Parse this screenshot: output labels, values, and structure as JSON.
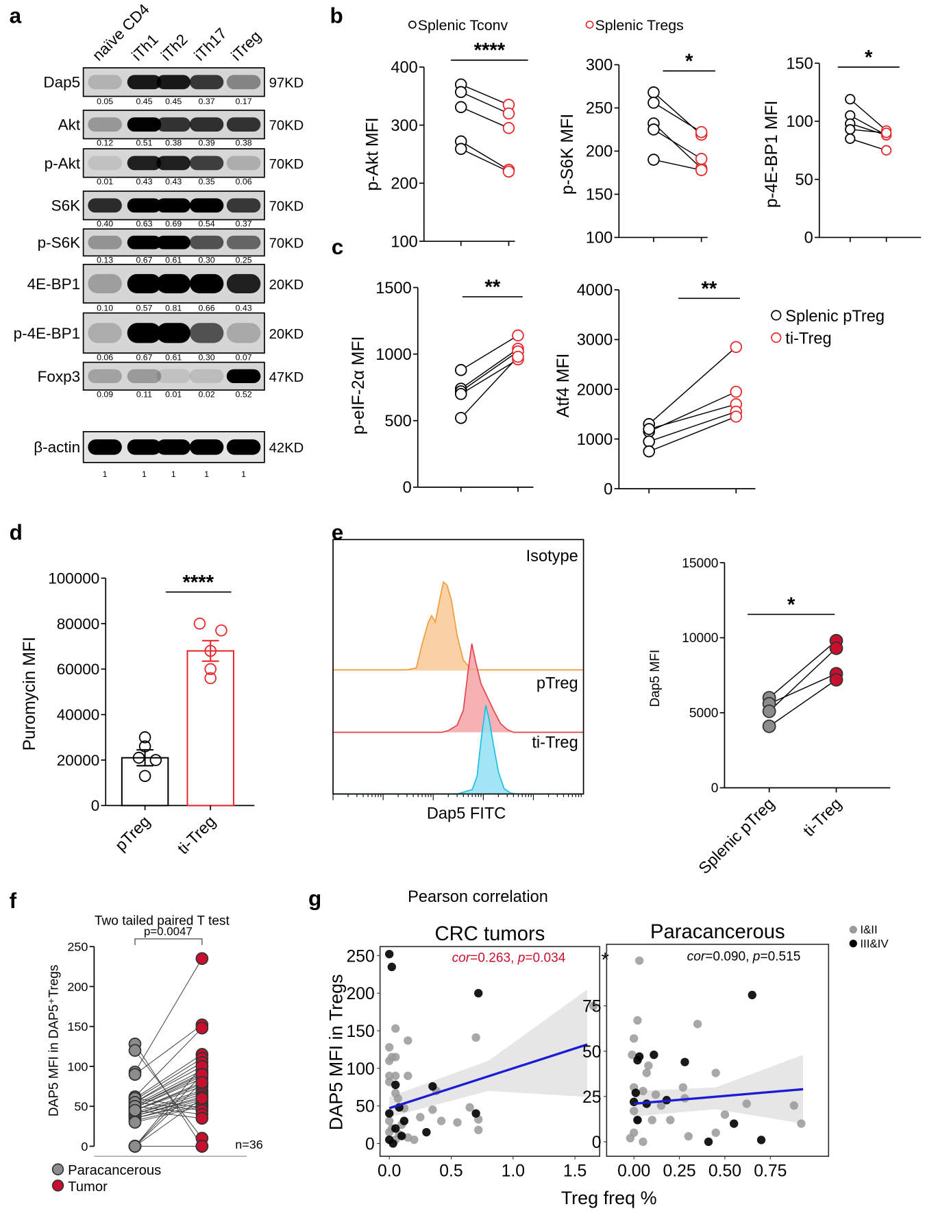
{
  "panel_labels": {
    "a": "a",
    "b": "b",
    "c": "c",
    "d": "d",
    "e": "e",
    "f": "f",
    "g": "g"
  },
  "legends": {
    "b": [
      {
        "label": "Splenic Tconv",
        "color": "#000000"
      },
      {
        "label": "Splenic Tregs",
        "color": "#e8262a"
      }
    ],
    "c": [
      {
        "label": "Splenic pTreg",
        "color": "#000000"
      },
      {
        "label": "ti-Treg",
        "color": "#e8262a"
      }
    ],
    "f": [
      {
        "label": "Paracancerous",
        "color": "#8c8c8c"
      },
      {
        "label": "Tumor",
        "color": "#c8102e"
      }
    ],
    "g": [
      {
        "label": "I&II",
        "color": "#9a9a9a"
      },
      {
        "label": "III&IV",
        "color": "#000000"
      }
    ]
  },
  "panel_g": {
    "title": "Pearson correlation",
    "xlabel": "Treg freq %",
    "ylabel": "DAP5 MFI in Tregs"
  },
  "chart_data": [
    {
      "panel": "a",
      "type": "table",
      "lanes": [
        "naïve CD4",
        "iTh1",
        "iTh2",
        "iTh17",
        "iTreg"
      ],
      "rows": [
        {
          "protein": "Dap5",
          "size": "97KD",
          "values": [
            "0.05",
            "0.45",
            "0.45",
            "0.37",
            "0.17"
          ]
        },
        {
          "protein": "Akt",
          "size": "70KD",
          "values": [
            "0.12",
            "0.51",
            "0.38",
            "0.39",
            "0.38"
          ]
        },
        {
          "protein": "p-Akt",
          "size": "70KD",
          "values": [
            "0.01",
            "0.43",
            "0.43",
            "0.35",
            "0.06"
          ]
        },
        {
          "protein": "S6K",
          "size": "70KD",
          "values": [
            "0.40",
            "0.63",
            "0.69",
            "0.54",
            "0.37"
          ]
        },
        {
          "protein": "p-S6K",
          "size": "70KD",
          "values": [
            "0.13",
            "0.67",
            "0.61",
            "0.30",
            "0.25"
          ]
        },
        {
          "protein": "4E-BP1",
          "size": "20KD",
          "values": [
            "0.10",
            "0.57",
            "0.81",
            "0.66",
            "0.43"
          ]
        },
        {
          "protein": "p-4E-BP1",
          "size": "20KD",
          "values": [
            "0.06",
            "0.67",
            "0.61",
            "0.30",
            "0.07"
          ]
        },
        {
          "protein": "Foxp3",
          "size": "47KD",
          "values": [
            "0.09",
            "0.11",
            "0.01",
            "0.02",
            "0.52"
          ]
        },
        {
          "protein": "β-actin",
          "size": "42KD",
          "values": [
            "1",
            "1",
            "1",
            "1",
            "1"
          ]
        }
      ]
    },
    {
      "panel": "b",
      "type": "scatter",
      "paired": true,
      "ylabel": "p-Akt MFI",
      "ylim": [
        100,
        400
      ],
      "yticks": [
        100,
        200,
        300,
        400
      ],
      "significance": "****",
      "series": [
        {
          "values": [
            370,
            357,
            331,
            272,
            259
          ]
        },
        {
          "values": [
            335,
            320,
            295,
            223,
            220
          ]
        }
      ]
    },
    {
      "panel": "b",
      "type": "scatter",
      "paired": true,
      "ylabel": "p-S6K MFI",
      "ylim": [
        100,
        300
      ],
      "yticks": [
        100,
        150,
        200,
        250,
        300
      ],
      "significance": "*",
      "series": [
        {
          "values": [
            268,
            256,
            232,
            225,
            190
          ]
        },
        {
          "values": [
            219,
            222,
            180,
            191,
            178
          ]
        }
      ]
    },
    {
      "panel": "b",
      "type": "scatter",
      "paired": true,
      "ylabel": "p-4E-BP1 MFI",
      "ylim": [
        0,
        150
      ],
      "yticks": [
        0,
        50,
        100,
        150
      ],
      "significance": "*",
      "series": [
        {
          "values": [
            119,
            105,
            98,
            93,
            85
          ]
        },
        {
          "values": [
            92,
            88,
            88,
            90,
            75
          ]
        }
      ]
    },
    {
      "panel": "c",
      "type": "scatter",
      "paired": true,
      "ylabel": "p-eIF-2α MFI",
      "ylim": [
        0,
        1500
      ],
      "yticks": [
        0,
        500,
        1000,
        1500
      ],
      "significance": "**",
      "series": [
        {
          "values": [
            880,
            740,
            720,
            700,
            520
          ]
        },
        {
          "values": [
            1140,
            1040,
            1020,
            960,
            980
          ]
        }
      ]
    },
    {
      "panel": "c",
      "type": "scatter",
      "paired": true,
      "ylabel": "Atf4 MFI",
      "ylim": [
        0,
        4000
      ],
      "yticks": [
        0,
        1000,
        2000,
        3000,
        4000
      ],
      "significance": "**",
      "series": [
        {
          "values": [
            1300,
            1150,
            1200,
            950,
            750
          ]
        },
        {
          "values": [
            2850,
            1950,
            1700,
            1550,
            1450
          ]
        }
      ]
    },
    {
      "panel": "d",
      "type": "bar",
      "ylabel": "Puromycin MFI",
      "categories": [
        "pTreg",
        "ti-Treg"
      ],
      "ylim": [
        0,
        100000
      ],
      "yticks": [
        0,
        20000,
        40000,
        60000,
        80000,
        100000
      ],
      "significance": "****",
      "means": [
        21000,
        68000
      ],
      "sem": [
        3500,
        4500
      ],
      "points": [
        [
          30000,
          26000,
          21000,
          20000,
          13000
        ],
        [
          80000,
          77000,
          68000,
          60000,
          56000
        ]
      ],
      "colors": [
        "#000000",
        "#e8262a"
      ]
    },
    {
      "panel": "e",
      "type": "area",
      "xlabel": "Dap5 FITC",
      "xscale": "log",
      "xlim": [
        1,
        100000
      ],
      "ylim": [
        0,
        100
      ],
      "series": [
        {
          "name": "Isotype",
          "color": "#f39a3a",
          "fill": "#f8c995",
          "points": [
            [
              1,
              1
            ],
            [
              30,
              1
            ],
            [
              46,
              3
            ],
            [
              60,
              30
            ],
            [
              80,
              55
            ],
            [
              93,
              62
            ],
            [
              110,
              55
            ],
            [
              140,
              85
            ],
            [
              160,
              100
            ],
            [
              190,
              96
            ],
            [
              230,
              80
            ],
            [
              300,
              40
            ],
            [
              400,
              12
            ],
            [
              560,
              2
            ],
            [
              800,
              1
            ],
            [
              100000,
              1
            ]
          ]
        },
        {
          "name": "pTreg",
          "color": "#e8424a",
          "fill": "#f5a3a6",
          "points": [
            [
              1,
              0
            ],
            [
              150,
              0
            ],
            [
              200,
              2
            ],
            [
              300,
              8
            ],
            [
              400,
              25
            ],
            [
              500,
              70
            ],
            [
              590,
              100
            ],
            [
              700,
              80
            ],
            [
              900,
              55
            ],
            [
              1200,
              40
            ],
            [
              1600,
              25
            ],
            [
              2200,
              10
            ],
            [
              3000,
              3
            ],
            [
              4000,
              0
            ],
            [
              100000,
              0
            ]
          ]
        },
        {
          "name": "ti-Treg",
          "color": "#19bfe3",
          "fill": "#92e2f4",
          "points": [
            [
              1,
              0
            ],
            [
              300,
              0
            ],
            [
              400,
              2
            ],
            [
              600,
              5
            ],
            [
              750,
              20
            ],
            [
              900,
              60
            ],
            [
              1120,
              100
            ],
            [
              1300,
              85
            ],
            [
              1600,
              55
            ],
            [
              2000,
              25
            ],
            [
              2600,
              6
            ],
            [
              3500,
              1
            ],
            [
              4500,
              0
            ],
            [
              100000,
              0
            ]
          ]
        }
      ]
    },
    {
      "panel": "e",
      "type": "scatter",
      "paired": true,
      "ylabel": "Dap5 MFI",
      "categories": [
        "Splenic pTreg",
        "ti-Treg"
      ],
      "ylim": [
        0,
        15000
      ],
      "yticks": [
        0,
        5000,
        10000,
        15000
      ],
      "significance": "*",
      "series": [
        {
          "values": [
            6000,
            5600,
            5100,
            4100
          ],
          "color": "#8c8c8c"
        },
        {
          "values": [
            9800,
            7600,
            9300,
            7200
          ],
          "color": "#c8102e"
        }
      ]
    },
    {
      "panel": "f",
      "type": "scatter",
      "paired": true,
      "title": "Two tailed paired T test",
      "ylabel": "DAP5 MFI in DAP5⁺Tregs",
      "ylim": [
        0,
        250
      ],
      "yticks": [
        0,
        50,
        100,
        150,
        200,
        250
      ],
      "pvalue": "p=0.0047",
      "n": "n=36",
      "series": [
        {
          "values": [
            128,
            120,
            93,
            90,
            62,
            60,
            58,
            55,
            55,
            52,
            50,
            50,
            48,
            48,
            45,
            45,
            45,
            42,
            40,
            40,
            38,
            38,
            35,
            35,
            32,
            30,
            60,
            55,
            50,
            45,
            0,
            0,
            0,
            0,
            0,
            0
          ]
        },
        {
          "values": [
            0,
            10,
            235,
            152,
            148,
            115,
            110,
            105,
            100,
            95,
            92,
            90,
            88,
            85,
            80,
            78,
            75,
            70,
            68,
            65,
            62,
            60,
            58,
            55,
            52,
            50,
            48,
            45,
            40,
            35,
            100,
            90,
            80,
            60,
            0,
            0
          ]
        }
      ]
    },
    {
      "panel": "g",
      "type": "scatter",
      "title": "CRC tumors",
      "annotation": "cor=0.263, p=0.034",
      "annotation_mark": "*",
      "annotation_color": "#c8102e",
      "xlim": [
        -0.075,
        1.7
      ],
      "ylim": [
        -17,
        262
      ],
      "xticks": [
        0,
        0.5,
        1.0,
        1.5
      ],
      "xticklabels": [
        "0.0",
        "0.5",
        "1.0",
        "1.5"
      ],
      "yticks": [
        0,
        50,
        100,
        150,
        200,
        250
      ],
      "regression": {
        "intercept": 47,
        "slope": 53,
        "x_range": [
          0,
          1.6
        ],
        "color": "#1c1cd6"
      },
      "ci": {
        "x": [
          0,
          0.8,
          1.6
        ],
        "lower": [
          35,
          70,
          62
        ],
        "upper": [
          62,
          110,
          205
        ]
      },
      "points_I_II": [
        [
          0.05,
          153
        ],
        [
          0.15,
          137
        ],
        [
          0.0,
          128
        ],
        [
          0.02,
          115
        ],
        [
          0.0,
          110
        ],
        [
          0.05,
          115
        ],
        [
          0.0,
          90
        ],
        [
          0.05,
          90
        ],
        [
          0.15,
          90
        ],
        [
          0.0,
          82
        ],
        [
          0.7,
          141
        ],
        [
          1.65,
          183
        ],
        [
          0.05,
          67
        ],
        [
          0.07,
          60
        ],
        [
          0.12,
          47
        ],
        [
          0.35,
          45
        ],
        [
          0.65,
          48
        ],
        [
          0.25,
          35
        ],
        [
          0.42,
          30
        ],
        [
          0.55,
          28
        ],
        [
          0.72,
          32
        ],
        [
          0.0,
          30
        ],
        [
          0.02,
          20
        ],
        [
          0.1,
          25
        ],
        [
          0.05,
          5
        ],
        [
          0.08,
          12
        ],
        [
          0.15,
          8
        ],
        [
          0.72,
          18
        ],
        [
          0.38,
          70
        ],
        [
          0.2,
          5
        ],
        [
          0.0,
          15
        ]
      ],
      "points_III_IV": [
        [
          0.0,
          252
        ],
        [
          0.02,
          235
        ],
        [
          0.72,
          200
        ],
        [
          0.05,
          78
        ],
        [
          0.7,
          40
        ],
        [
          0.12,
          30
        ],
        [
          0.0,
          40
        ],
        [
          0.05,
          20
        ],
        [
          0.1,
          10
        ],
        [
          0.0,
          5
        ],
        [
          0.3,
          15
        ],
        [
          0.35,
          76
        ],
        [
          0.08,
          48
        ],
        [
          0.03,
          0
        ]
      ]
    },
    {
      "panel": "g",
      "type": "scatter",
      "title": "Paracancerous",
      "annotation": "cor=0.090, p=0.515",
      "annotation_color": "#000000",
      "xlim": [
        -0.15,
        1.07
      ],
      "ylim": [
        -8,
        109
      ],
      "xticks": [
        0,
        0.25,
        0.5,
        0.75
      ],
      "xticklabels": [
        "0.00",
        "0.25",
        "0.50",
        "0.75"
      ],
      "yticks": [
        0,
        25,
        50,
        75
      ],
      "regression": {
        "intercept": 21,
        "slope": 8.6,
        "x_range": [
          0,
          0.93
        ],
        "color": "#1c1cd6"
      },
      "ci": {
        "x": [
          0,
          0.45,
          0.93
        ],
        "lower": [
          14,
          18,
          10
        ],
        "upper": [
          28,
          30,
          48
        ]
      },
      "points_I_II": [
        [
          0.03,
          100
        ],
        [
          0.02,
          67
        ],
        [
          0.0,
          57
        ],
        [
          -0.01,
          48
        ],
        [
          0.08,
          42
        ],
        [
          0.07,
          38
        ],
        [
          0.35,
          65
        ],
        [
          0.45,
          38
        ],
        [
          0.27,
          30
        ],
        [
          0.28,
          24
        ],
        [
          0.62,
          21
        ],
        [
          0.88,
          20
        ],
        [
          0.05,
          28
        ],
        [
          0.12,
          26
        ],
        [
          0.0,
          30
        ],
        [
          0.0,
          17
        ],
        [
          0.02,
          12
        ],
        [
          0.1,
          12
        ],
        [
          0.2,
          12
        ],
        [
          0.92,
          10
        ],
        [
          0.45,
          5
        ],
        [
          0.3,
          3
        ],
        [
          0.0,
          5
        ],
        [
          0.05,
          0
        ],
        [
          -0.02,
          2
        ],
        [
          0.15,
          20
        ],
        [
          0.5,
          15
        ]
      ],
      "points_III_IV": [
        [
          0.02,
          45
        ],
        [
          0.03,
          47
        ],
        [
          0.11,
          48
        ],
        [
          0.28,
          44
        ],
        [
          0.65,
          81
        ],
        [
          0.01,
          27
        ],
        [
          0.07,
          21
        ],
        [
          0.18,
          23
        ],
        [
          0.0,
          22
        ],
        [
          0.02,
          12
        ],
        [
          0.41,
          0
        ],
        [
          0.55,
          10
        ],
        [
          0.7,
          1
        ]
      ]
    }
  ]
}
